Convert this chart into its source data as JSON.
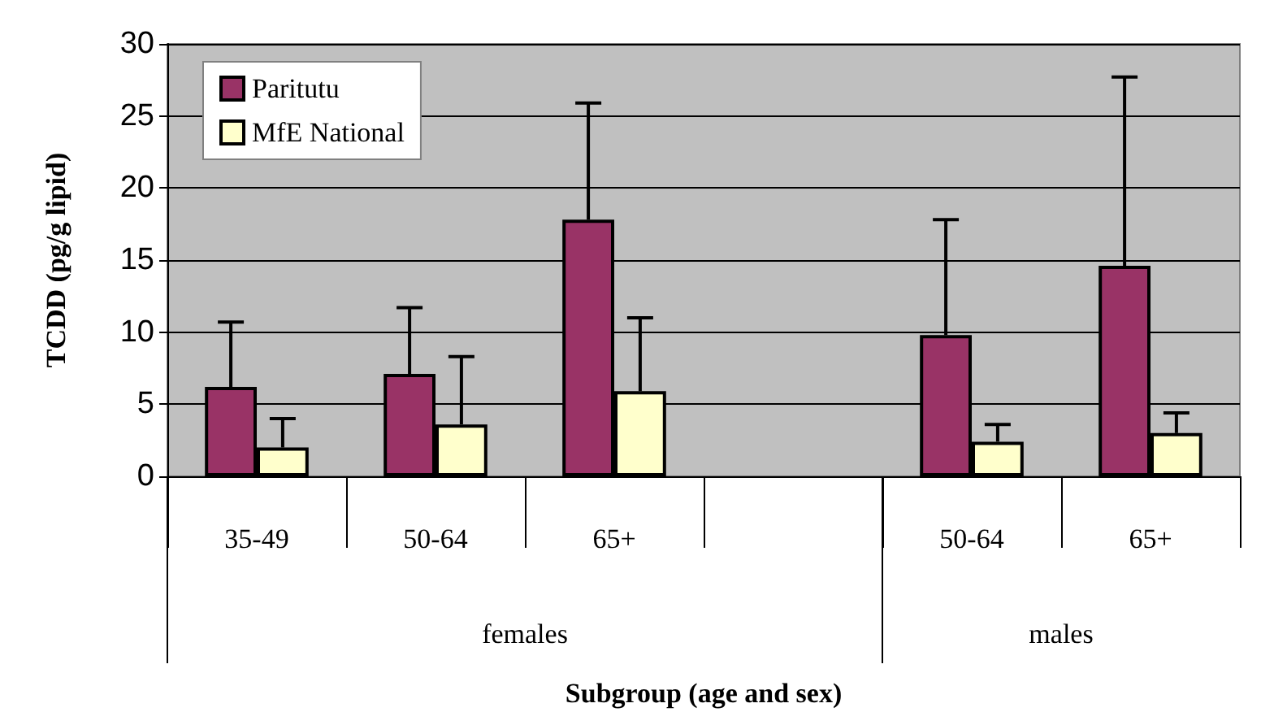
{
  "chart_data": {
    "type": "bar",
    "xlabel": "Subgroup (age and sex)",
    "ylabel": "TCDD (pg/g lipid)",
    "categories": [
      "35-49",
      "50-64",
      "65+",
      null,
      "50-64",
      "65+"
    ],
    "series": [
      {
        "name": "Paritutu",
        "color": "#993366",
        "values": [
          6.2,
          7.1,
          17.8,
          null,
          9.8,
          14.6
        ],
        "errors": [
          [
            6.2,
            10.7
          ],
          [
            7.1,
            11.7
          ],
          [
            17.8,
            25.9
          ],
          null,
          [
            9.8,
            17.8
          ],
          [
            14.6,
            27.7
          ]
        ]
      },
      {
        "name": "MfE National",
        "color": "#ffffcc",
        "values": [
          2.0,
          3.6,
          5.9,
          null,
          2.4,
          3.0
        ],
        "errors": [
          [
            2.0,
            4.0
          ],
          [
            3.6,
            8.3
          ],
          [
            5.9,
            11.0
          ],
          null,
          [
            2.4,
            3.6
          ],
          [
            3.0,
            4.4
          ]
        ]
      }
    ],
    "ylim": [
      0,
      30
    ],
    "yticks": [
      0,
      5,
      10,
      15,
      20,
      25,
      30
    ],
    "grid": "y",
    "legend": "top left",
    "annotations": [
      "females",
      "males"
    ]
  }
}
